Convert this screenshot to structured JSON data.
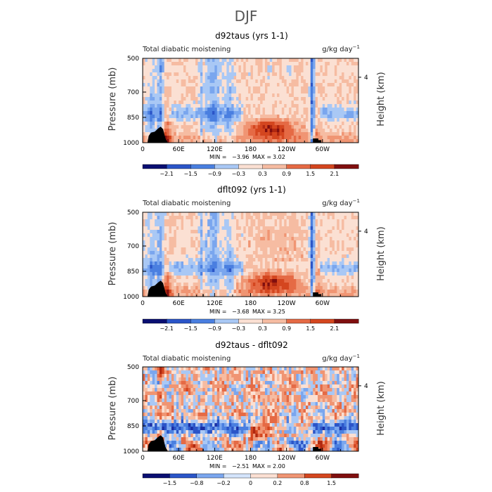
{
  "figure_title": "DJF",
  "chart_data": [
    {
      "type": "heatmap",
      "title": "d92taus (yrs 1-1)",
      "left_label": "Total diabatic moistening",
      "units": "g/kg day",
      "units_exp": "−1",
      "ylabel": "Pressure (mb)",
      "y2label": "Height (km)",
      "xticks": [
        "0",
        "60E",
        "120E",
        "180",
        "120W",
        "60W"
      ],
      "xtick_values": [
        0,
        60,
        120,
        180,
        240,
        300
      ],
      "xlim": [
        0,
        360
      ],
      "yticks": [
        "500",
        "700",
        "850",
        "1000"
      ],
      "ytick_values": [
        500,
        700,
        850,
        1000
      ],
      "ylim": [
        1000,
        500
      ],
      "y2ticks": [
        "4"
      ],
      "stats": {
        "min_label": "MIN =",
        "min": "−3.96",
        "max_label": "MAX =",
        "max": "3.02"
      },
      "colorbar": {
        "labels": [
          "−2.1",
          "−1.5",
          "−0.9",
          "−0.3",
          "0.3",
          "0.9",
          "1.5",
          "2.1"
        ],
        "levels": [
          -2.1,
          -1.5,
          -0.9,
          -0.3,
          0.3,
          0.9,
          1.5,
          2.1
        ]
      }
    },
    {
      "type": "heatmap",
      "title": "dflt092 (yrs 1-1)",
      "left_label": "Total diabatic moistening",
      "units": "g/kg day",
      "units_exp": "−1",
      "ylabel": "Pressure (mb)",
      "y2label": "Height (km)",
      "xticks": [
        "0",
        "60E",
        "120E",
        "180",
        "120W",
        "60W"
      ],
      "xtick_values": [
        0,
        60,
        120,
        180,
        240,
        300
      ],
      "xlim": [
        0,
        360
      ],
      "yticks": [
        "500",
        "700",
        "850",
        "1000"
      ],
      "ytick_values": [
        500,
        700,
        850,
        1000
      ],
      "ylim": [
        1000,
        500
      ],
      "y2ticks": [
        "4"
      ],
      "stats": {
        "min_label": "MIN =",
        "min": "−3.68",
        "max_label": "MAX =",
        "max": "3.25"
      },
      "colorbar": {
        "labels": [
          "−2.1",
          "−1.5",
          "−0.9",
          "−0.3",
          "0.3",
          "0.9",
          "1.5",
          "2.1"
        ],
        "levels": [
          -2.1,
          -1.5,
          -0.9,
          -0.3,
          0.3,
          0.9,
          1.5,
          2.1
        ]
      }
    },
    {
      "type": "heatmap",
      "title": "d92taus - dflt092",
      "left_label": "Total diabatic moistening",
      "units": "g/kg day",
      "units_exp": "−1",
      "ylabel": "Pressure (mb)",
      "y2label": "Height (km)",
      "xticks": [
        "0",
        "60E",
        "120E",
        "180",
        "120W",
        "60W"
      ],
      "xtick_values": [
        0,
        60,
        120,
        180,
        240,
        300
      ],
      "xlim": [
        0,
        360
      ],
      "yticks": [
        "500",
        "700",
        "850",
        "1000"
      ],
      "ytick_values": [
        500,
        700,
        850,
        1000
      ],
      "ylim": [
        1000,
        500
      ],
      "y2ticks": [
        "4"
      ],
      "stats": {
        "min_label": "MIN =",
        "min": "−2.51",
        "max_label": "MAX =",
        "max": "2.00"
      },
      "colorbar": {
        "labels": [
          "−1.5",
          "−0.8",
          "−0.2",
          "0",
          "0.2",
          "0.8",
          "1.5"
        ],
        "levels": [
          -1.5,
          -0.8,
          -0.2,
          0,
          0.2,
          0.8,
          1.5
        ]
      }
    }
  ],
  "palette": [
    "#0a0f72",
    "#1a2fa6",
    "#2b55c8",
    "#4a7fe0",
    "#7aa6ee",
    "#a9c8f5",
    "#d4e4fb",
    "#fbe0d3",
    "#f6bca2",
    "#f09573",
    "#e56a45",
    "#d4461f",
    "#b02810",
    "#800f0f"
  ]
}
